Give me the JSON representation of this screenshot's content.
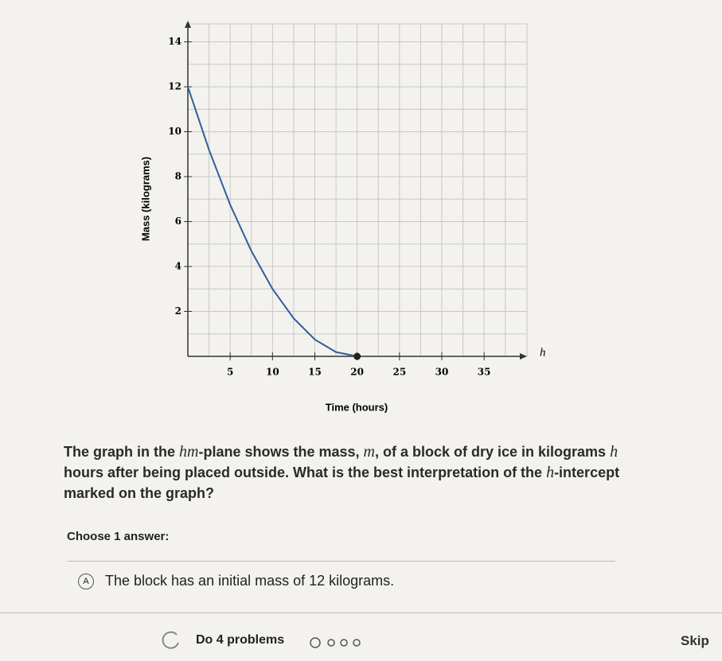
{
  "chart_data": {
    "type": "line",
    "x_label": "Time (hours)",
    "y_label": "Mass (kilograms)",
    "x_axis_name": "h",
    "x": [
      0,
      2.5,
      5,
      7.5,
      10,
      12.5,
      15,
      17.5,
      20
    ],
    "series": [
      {
        "color": "#2f5f9e",
        "values": [
          12,
          9.19,
          6.75,
          4.69,
          3,
          1.69,
          0.75,
          0.19,
          0
        ]
      }
    ],
    "points": [
      {
        "x": 20,
        "y": 0,
        "color": "#222"
      }
    ],
    "xlim": [
      0,
      39.5
    ],
    "ylim": [
      0,
      14.8
    ],
    "xticks": [
      5,
      10,
      15,
      20,
      25,
      30,
      35
    ],
    "yticks": [
      2,
      4,
      6,
      8,
      10,
      12,
      14
    ],
    "x_minor_ticks": [
      2.5,
      7.5,
      12.5,
      17.5,
      22.5,
      27.5,
      32.5,
      37.5
    ],
    "y_minor_ticks": [
      1,
      3,
      5,
      7,
      9,
      11,
      13
    ],
    "grid": true
  },
  "question": [
    "The graph in the ",
    "hm",
    "-plane shows the mass, ",
    "m",
    ", of a block of dry ice in kilograms ",
    "h",
    " hours after being placed outside. What is the best interpretation of the ",
    "h",
    "-intercept marked on the graph?"
  ],
  "prompt": "Choose 1 answer:",
  "choices": [
    {
      "letter": "A",
      "text": "The block has an initial mass of 12 kilograms."
    }
  ],
  "footer": {
    "task": "Do 4 problems",
    "skip": "Skip"
  }
}
